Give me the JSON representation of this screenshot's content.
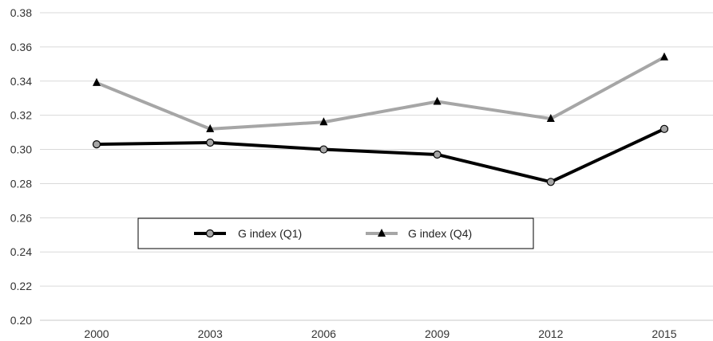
{
  "chart_data": {
    "type": "line",
    "title": "",
    "xlabel": "",
    "ylabel": "",
    "categories": [
      "2000",
      "2003",
      "2006",
      "2009",
      "2012",
      "2015"
    ],
    "ylim": [
      0.2,
      0.38
    ],
    "yticks": [
      "0.20",
      "0.22",
      "0.24",
      "0.26",
      "0.28",
      "0.30",
      "0.32",
      "0.34",
      "0.36",
      "0.38"
    ],
    "grid": "horizontal",
    "legend_position": "center-left",
    "series": [
      {
        "name": "G index (Q1)",
        "values": [
          0.303,
          0.304,
          0.3,
          0.297,
          0.281,
          0.312
        ],
        "color": "#000000",
        "marker": "circle",
        "marker_fill": "#a6a6a6"
      },
      {
        "name": "G index (Q4)",
        "values": [
          0.339,
          0.312,
          0.316,
          0.328,
          0.318,
          0.354
        ],
        "color": "#a6a6a6",
        "marker": "triangle",
        "marker_fill": "#000000"
      }
    ]
  }
}
